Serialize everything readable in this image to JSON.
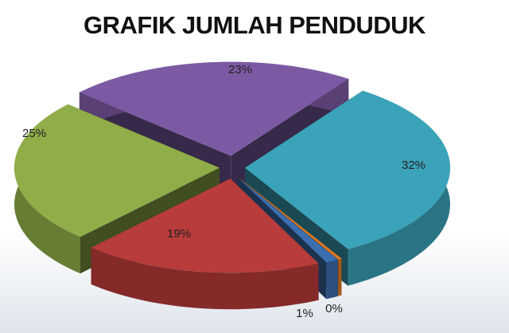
{
  "chart_data": {
    "type": "pie",
    "style": "3d-exploded",
    "title": "GRAFIK JUMLAH PENDUDUK",
    "slices": [
      {
        "label": "32%",
        "value": 32,
        "color": "#3aa3b9"
      },
      {
        "label": "0%",
        "value": 0.3,
        "color": "#e07b24"
      },
      {
        "label": "1%",
        "value": 1,
        "color": "#3d6fb0"
      },
      {
        "label": "19%",
        "value": 19,
        "color": "#b83c3a"
      },
      {
        "label": "25%",
        "value": 25,
        "color": "#8fad48"
      },
      {
        "label": "23%",
        "value": 23,
        "color": "#7b5aa3"
      }
    ],
    "legend": "none"
  }
}
